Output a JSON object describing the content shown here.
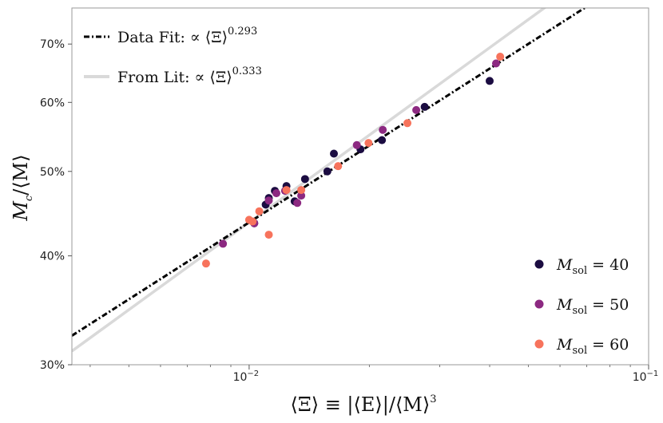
{
  "chart_data": {
    "type": "scatter",
    "xscale": "log",
    "yscale": "log",
    "xlim": [
      0.0036,
      0.1
    ],
    "ylim": [
      0.3,
      0.77
    ],
    "x_ticks": [
      {
        "value": 0.01,
        "base": "10",
        "exp": "−2"
      },
      {
        "value": 0.1,
        "base": "10",
        "exp": "−1"
      }
    ],
    "y_ticks": [
      {
        "value": 0.3,
        "label": "30%"
      },
      {
        "value": 0.4,
        "label": "40%"
      },
      {
        "value": 0.5,
        "label": "50%"
      },
      {
        "value": 0.6,
        "label": "60%"
      },
      {
        "value": 0.7,
        "label": "70%"
      }
    ],
    "xlabel": "⟨Ξ⟩ ≡ |⟨E⟩|/⟨M⟩",
    "xlabel_sup": "3",
    "ylabel": "M",
    "ylabel_sub": "c",
    "ylabel_rest": "/⟨M⟩",
    "fits": [
      {
        "label": "Data Fit: ∝ ⟨Ξ⟩",
        "exponent_label": "0.293",
        "exponent": 0.293,
        "anchor_x": 0.01,
        "anchor_y": 0.437,
        "style": "dashdot",
        "color": "#000000"
      },
      {
        "label": "From Lit: ∝ ⟨Ξ⟩",
        "exponent_label": "0.333",
        "exponent": 0.333,
        "anchor_x": 0.01,
        "anchor_y": 0.437,
        "style": "solid",
        "color": "#d9d9d9"
      }
    ],
    "series": [
      {
        "name_main": "M",
        "name_sub": "sol",
        "name_rest": " = 40",
        "color": "#1b0c41",
        "points": [
          [
            0.0103,
            0.436
          ],
          [
            0.011,
            0.458
          ],
          [
            0.0112,
            0.466
          ],
          [
            0.0116,
            0.475
          ],
          [
            0.0124,
            0.481
          ],
          [
            0.013,
            0.462
          ],
          [
            0.0138,
            0.49
          ],
          [
            0.0157,
            0.5
          ],
          [
            0.0163,
            0.524
          ],
          [
            0.019,
            0.53
          ],
          [
            0.0215,
            0.543
          ],
          [
            0.0275,
            0.593
          ],
          [
            0.04,
            0.635
          ]
        ]
      },
      {
        "name_main": "M",
        "name_sub": "sol",
        "name_rest": " = 50",
        "color": "#8c2981",
        "points": [
          [
            0.0086,
            0.413
          ],
          [
            0.0103,
            0.436
          ],
          [
            0.0112,
            0.463
          ],
          [
            0.0117,
            0.472
          ],
          [
            0.0123,
            0.475
          ],
          [
            0.0132,
            0.46
          ],
          [
            0.0135,
            0.469
          ],
          [
            0.0186,
            0.536
          ],
          [
            0.0216,
            0.558
          ],
          [
            0.0262,
            0.588
          ],
          [
            0.0415,
            0.665
          ]
        ]
      },
      {
        "name_main": "M",
        "name_sub": "sol",
        "name_rest": " = 60",
        "color": "#f7735c",
        "points": [
          [
            0.0078,
            0.392
          ],
          [
            0.01,
            0.44
          ],
          [
            0.0102,
            0.438
          ],
          [
            0.0106,
            0.45
          ],
          [
            0.0112,
            0.423
          ],
          [
            0.0124,
            0.476
          ],
          [
            0.0135,
            0.476
          ],
          [
            0.0167,
            0.507
          ],
          [
            0.0199,
            0.539
          ],
          [
            0.0249,
            0.568
          ],
          [
            0.0425,
            0.677
          ]
        ]
      }
    ]
  }
}
